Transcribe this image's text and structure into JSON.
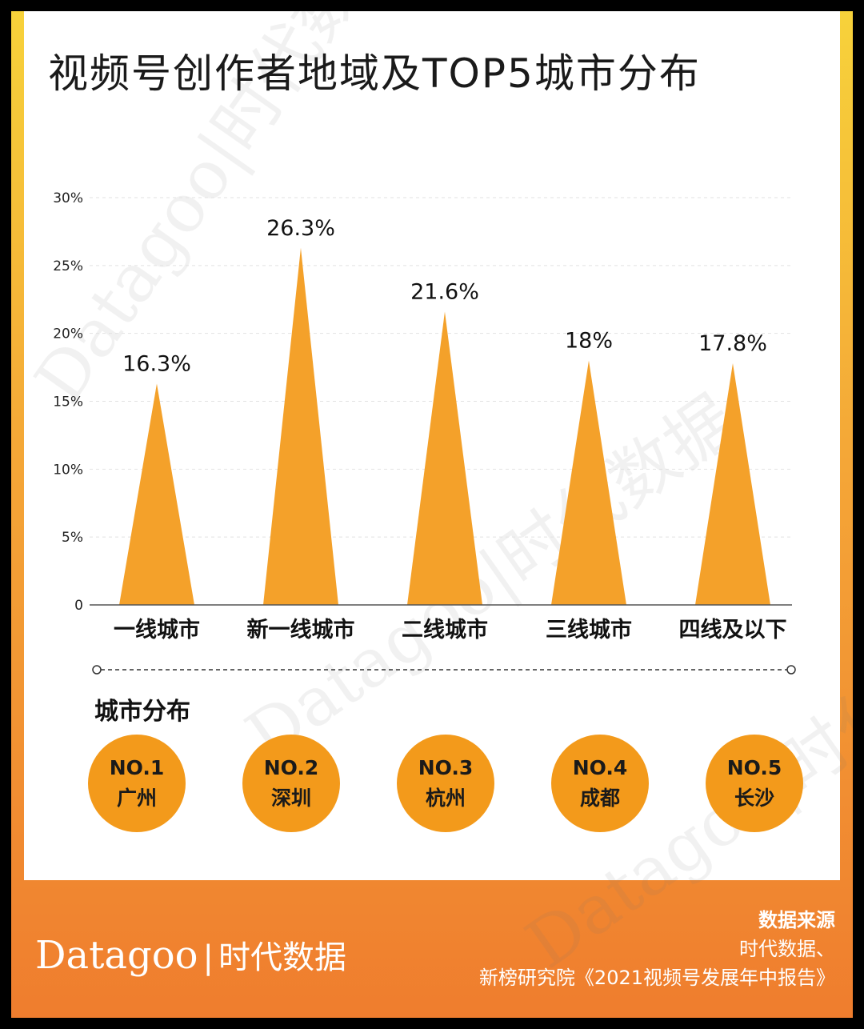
{
  "title": "视频号创作者地域及TOP5城市分布",
  "chart_data": {
    "type": "bar",
    "categories": [
      "一线城市",
      "新一线城市",
      "二线城市",
      "三线城市",
      "四线及以下"
    ],
    "values": [
      16.3,
      26.3,
      21.6,
      18,
      17.8
    ],
    "value_labels": [
      "16.3%",
      "26.3%",
      "21.6%",
      "18%",
      "17.8%"
    ],
    "ylim": [
      0,
      30
    ],
    "yticks": [
      "0",
      "5%",
      "10%",
      "15%",
      "20%",
      "25%",
      "30%"
    ],
    "ytick_values": [
      0,
      5,
      10,
      15,
      20,
      25,
      30
    ],
    "grid": true,
    "bar_color": "#f4a12a"
  },
  "city_section": {
    "title": "城市分布",
    "cities": [
      {
        "rank": "NO.1",
        "name": "广州"
      },
      {
        "rank": "NO.2",
        "name": "深圳"
      },
      {
        "rank": "NO.3",
        "name": "杭州"
      },
      {
        "rank": "NO.4",
        "name": "成都"
      },
      {
        "rank": "NO.5",
        "name": "长沙"
      }
    ]
  },
  "footer": {
    "brand_en": "Datagoo",
    "brand_sep": "|",
    "brand_cn": "时代数据",
    "source_title": "数据来源",
    "source_line1": "时代数据、",
    "source_line2": "新榜研究院《2021视频号发展年中报告》"
  },
  "watermark": {
    "text": "Datagoo|时代数据"
  },
  "colors": {
    "accent": "#f39a1b",
    "footer": "#ef7d2e",
    "edge": "#f7d23a"
  }
}
